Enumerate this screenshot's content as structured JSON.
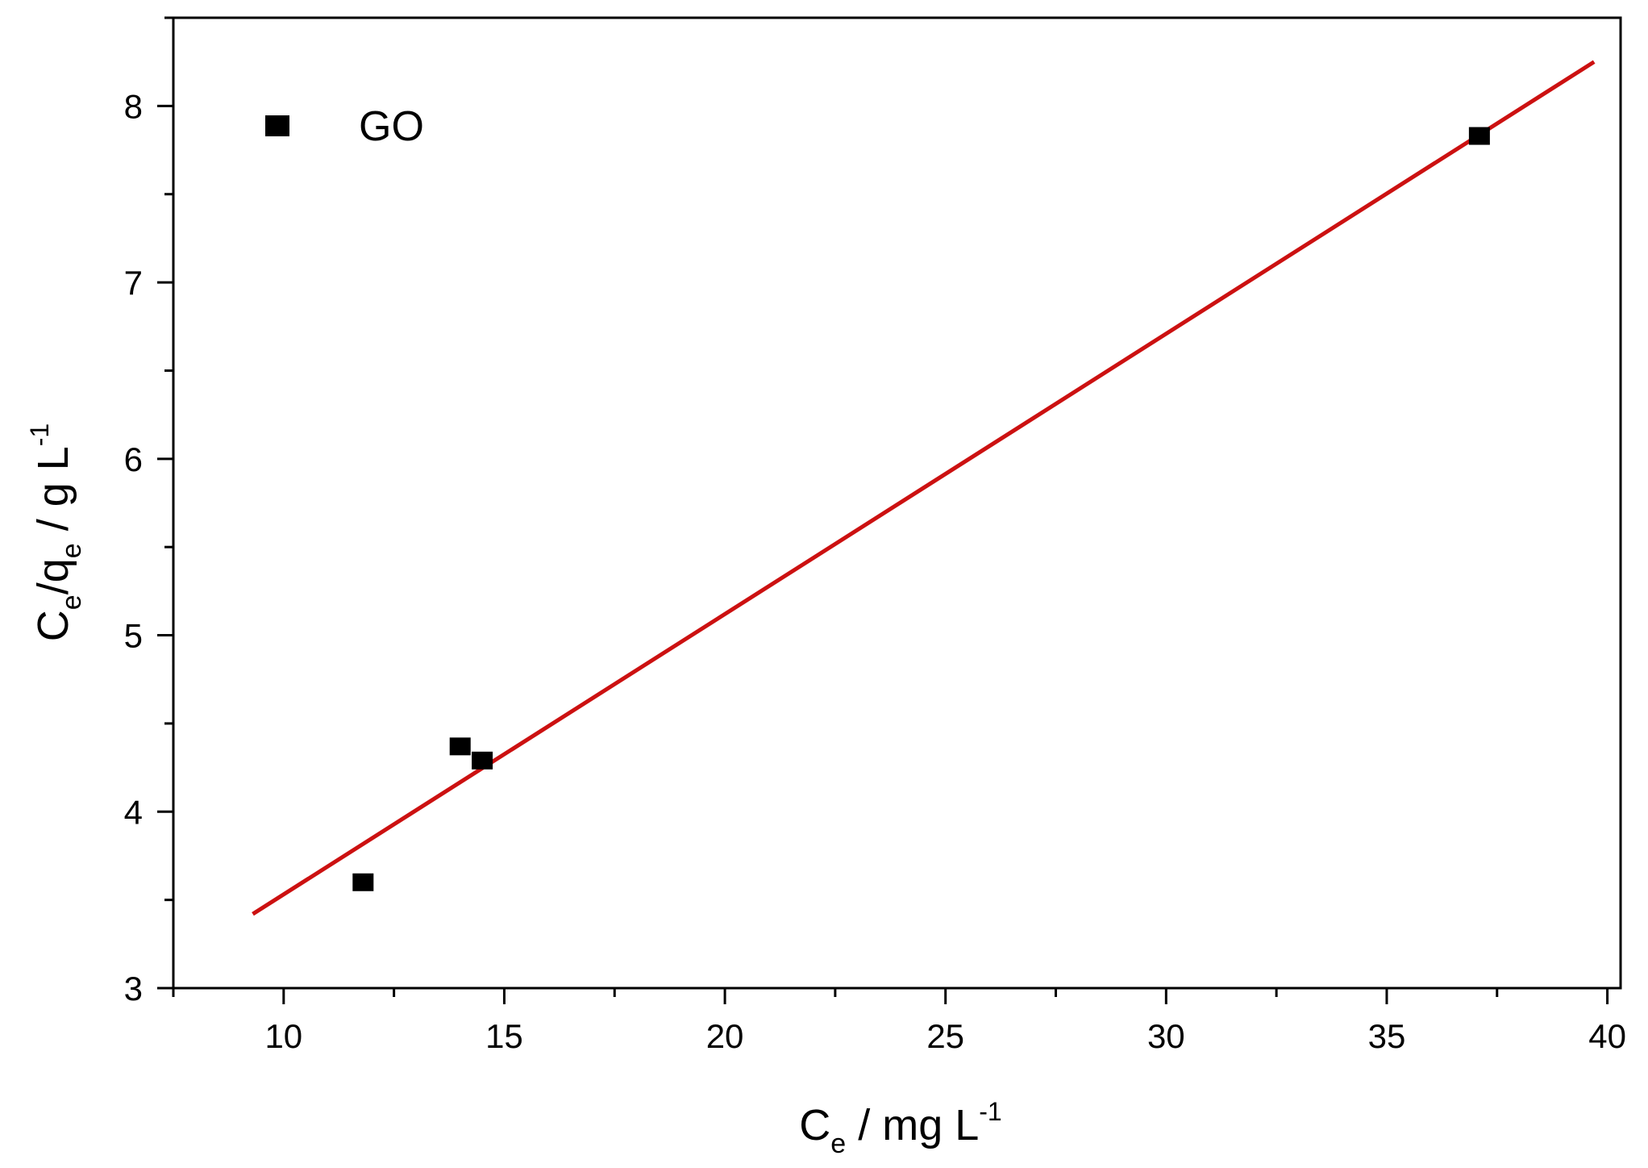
{
  "chart_data": {
    "type": "scatter",
    "title": "",
    "xlabel": {
      "main": "C",
      "sub": "e",
      "rest": " / mg L",
      "sup": "-1"
    },
    "ylabel": {
      "main": "C",
      "sub1": "e",
      "mid": "/q",
      "sub2": "e",
      "rest": " / g L",
      "sup": "-1"
    },
    "xlim": [
      7.5,
      40.3
    ],
    "ylim": [
      3,
      8.5
    ],
    "x_ticks": [
      "10",
      "15",
      "20",
      "25",
      "30",
      "35",
      "40"
    ],
    "y_ticks": [
      "3",
      "4",
      "5",
      "6",
      "7",
      "8"
    ],
    "grid": false,
    "legend": {
      "position": "top-left",
      "entries": [
        "GO"
      ]
    },
    "series": [
      {
        "name": "GO",
        "marker": "square",
        "color": "#000000",
        "x": [
          11.8,
          14.0,
          14.5,
          37.1
        ],
        "y": [
          3.6,
          4.37,
          4.29,
          7.83
        ]
      }
    ],
    "fit_line": {
      "color": "#cc1111",
      "x": [
        9.3,
        39.7
      ],
      "y": [
        3.42,
        8.25
      ]
    }
  }
}
